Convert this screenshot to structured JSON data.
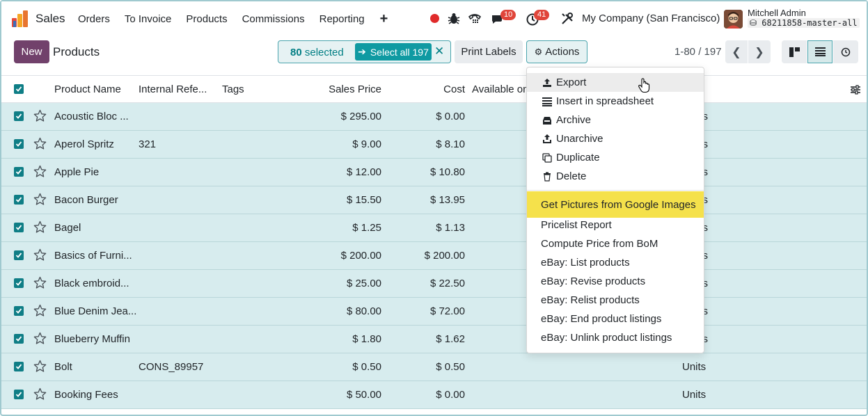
{
  "app": {
    "name": "Sales"
  },
  "nav": {
    "items": [
      {
        "label": "Orders"
      },
      {
        "label": "To Invoice"
      },
      {
        "label": "Products"
      },
      {
        "label": "Commissions"
      },
      {
        "label": "Reporting"
      }
    ],
    "plus": "+"
  },
  "systray": {
    "messages_badge": "10",
    "activities_badge": "41",
    "company": "My Company (San Francisco)",
    "user_name": "Mitchell Admin",
    "database": "68211858-master-all"
  },
  "control": {
    "new_label": "New",
    "title": "Products",
    "selected_count": "80",
    "selected_suffix": " selected",
    "select_all_label": "Select all 197",
    "print_label": "Print Labels",
    "actions_label": "Actions",
    "pager": "1-80 / 197"
  },
  "table": {
    "headers": {
      "name": "Product Name",
      "ref": "Internal Refe...",
      "tags": "Tags",
      "price": "Sales Price",
      "cost": "Cost",
      "available": "Available on"
    },
    "rows": [
      {
        "name": "Acoustic Bloc ...",
        "ref": "",
        "price": "$ 295.00",
        "cost": "$ 0.00",
        "uom": "its"
      },
      {
        "name": "Aperol Spritz",
        "ref": "321",
        "price": "$ 9.00",
        "cost": "$ 8.10",
        "uom": "its"
      },
      {
        "name": "Apple Pie",
        "ref": "",
        "price": "$ 12.00",
        "cost": "$ 10.80",
        "uom": "its"
      },
      {
        "name": "Bacon Burger",
        "ref": "",
        "price": "$ 15.50",
        "cost": "$ 13.95",
        "uom": "its"
      },
      {
        "name": "Bagel",
        "ref": "",
        "price": "$ 1.25",
        "cost": "$ 1.13",
        "uom": "its"
      },
      {
        "name": "Basics of Furni...",
        "ref": "",
        "price": "$ 200.00",
        "cost": "$ 200.00",
        "uom": "its"
      },
      {
        "name": "Black embroid...",
        "ref": "",
        "price": "$ 25.00",
        "cost": "$ 22.50",
        "uom": "its"
      },
      {
        "name": "Blue Denim Jea...",
        "ref": "",
        "price": "$ 80.00",
        "cost": "$ 72.00",
        "uom": "its"
      },
      {
        "name": "Blueberry Muffin",
        "ref": "",
        "price": "$ 1.80",
        "cost": "$ 1.62",
        "uom": "its"
      },
      {
        "name": "Bolt",
        "ref": "CONS_89957",
        "price": "$ 0.50",
        "cost": "$ 0.50",
        "uom": "Units"
      },
      {
        "name": "Booking Fees",
        "ref": "",
        "price": "$ 50.00",
        "cost": "$ 0.00",
        "uom": "Units"
      }
    ]
  },
  "actions_menu": {
    "items": [
      {
        "label": "Export",
        "icon": "upload-icon"
      },
      {
        "label": "Insert in spreadsheet",
        "icon": "list-icon"
      },
      {
        "label": "Archive",
        "icon": "inbox-icon"
      },
      {
        "label": "Unarchive",
        "icon": "unarchive-icon"
      },
      {
        "label": "Duplicate",
        "icon": "copy-icon"
      },
      {
        "label": "Delete",
        "icon": "trash-icon"
      }
    ],
    "extra": [
      {
        "label": "Get Pictures from Google Images"
      },
      {
        "label": "Pricelist Report"
      },
      {
        "label": "Compute Price from BoM"
      },
      {
        "label": "eBay: List products"
      },
      {
        "label": "eBay: Revise products"
      },
      {
        "label": "eBay: Relist products"
      },
      {
        "label": "eBay: End product listings"
      },
      {
        "label": "eBay: Unlink product listings"
      }
    ]
  },
  "colors": {
    "brand": "#71416b",
    "accent": "#017e84",
    "row_selected": "#d7ecee",
    "highlight": "#f5e14b"
  }
}
